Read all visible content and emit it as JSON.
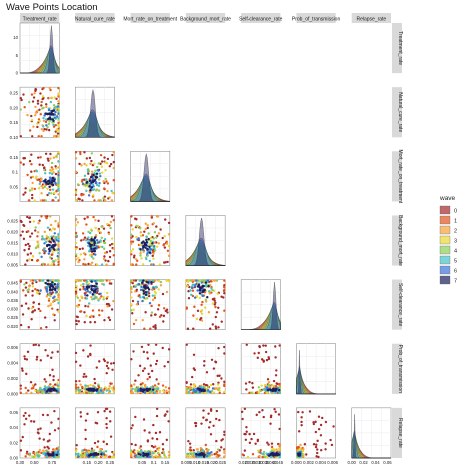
{
  "title": "Wave Points Location",
  "chart_data": {
    "type": "scatter",
    "description_kind": "pairs-plot",
    "variables": [
      {
        "name": "Treatment_rate",
        "range": [
          0.3,
          0.85
        ],
        "ticks": [
          "0.30",
          "0.50",
          "0.75"
        ],
        "tick_values": [
          0.3,
          0.5,
          0.75
        ]
      },
      {
        "name": "Natural_cure_rate",
        "range": [
          0.1,
          0.27
        ],
        "ticks": [
          "0.15",
          "0.20",
          "0.25"
        ],
        "tick_values": [
          0.15,
          0.2,
          0.25
        ]
      },
      {
        "name": "Mort_rate_on_treatment",
        "range": [
          0.0,
          0.17
        ],
        "ticks": [
          "0.05",
          "0.1",
          "0.15"
        ],
        "tick_values": [
          0.05,
          0.1,
          0.15
        ]
      },
      {
        "name": "Background_mort_rate",
        "range": [
          0.0048,
          0.0275
        ],
        "ticks": [
          "0.005",
          "0.010",
          "0.015",
          "0.020",
          "0.025"
        ],
        "tick_values": [
          0.005,
          0.01,
          0.015,
          0.02,
          0.025
        ]
      },
      {
        "name": "Self-clearance_rate",
        "range": [
          0.018,
          0.047
        ],
        "ticks": [
          "0.020",
          "0.025",
          "0.030",
          "0.035",
          "0.040",
          "0.045"
        ],
        "tick_values": [
          0.02,
          0.025,
          0.03,
          0.035,
          0.04,
          0.045
        ]
      },
      {
        "name": "Prob_of_transmission",
        "range": [
          0.0,
          0.0065
        ],
        "ticks": [
          "0.000",
          "0.002",
          "0.004",
          "0.006"
        ],
        "tick_values": [
          0.0,
          0.002,
          0.004,
          0.006
        ]
      },
      {
        "name": "Relapse_rate",
        "range": [
          0.0,
          0.066
        ],
        "ticks": [
          "0.00",
          "0.02",
          "0.04",
          "0.06"
        ],
        "tick_values": [
          0.0,
          0.02,
          0.04,
          0.06
        ]
      }
    ],
    "y_axis_ticks": {
      "0": {
        "labels": [
          "0",
          "5",
          "10"
        ],
        "values": [
          0,
          5,
          10
        ],
        "range": [
          0,
          14
        ]
      },
      "1": {
        "labels": [
          "0.10",
          "0.15",
          "0.20",
          "0.25"
        ],
        "values": [
          0.1,
          0.15,
          0.2,
          0.25
        ]
      },
      "2": {
        "labels": [
          "0.05",
          "0.1",
          "0.15"
        ],
        "values": [
          0.05,
          0.1,
          0.15
        ]
      },
      "3": {
        "labels": [
          "0.005",
          "0.010",
          "0.015",
          "0.020",
          "0.025"
        ],
        "values": [
          0.005,
          0.01,
          0.015,
          0.02,
          0.025
        ]
      },
      "4": {
        "labels": [
          "0.020",
          "0.025",
          "0.030",
          "0.035",
          "0.040",
          "0.045"
        ],
        "values": [
          0.02,
          0.025,
          0.03,
          0.035,
          0.04,
          0.045
        ]
      },
      "5": {
        "labels": [
          "0.000",
          "0.002",
          "0.004",
          "0.006"
        ],
        "values": [
          0.0,
          0.002,
          0.004,
          0.006
        ]
      },
      "6": {
        "labels": [
          "0.00",
          "0.02",
          "0.04",
          "0.06"
        ],
        "values": [
          0.0,
          0.02,
          0.04,
          0.06
        ]
      }
    },
    "legend": {
      "title": "wave",
      "placement": "right",
      "levels": [
        "0",
        "1",
        "2",
        "3",
        "4",
        "5",
        "6",
        "7"
      ],
      "colors": [
        "#a52a2a",
        "#e2541c",
        "#f7a23c",
        "#e8d934",
        "#8cd05a",
        "#46c2c8",
        "#3a75d9",
        "#1e1e5c"
      ]
    },
    "density_peak_wave": "7",
    "grid": true,
    "panel_background": "#ffffff",
    "grid_color": "#ebebeb",
    "strip_background": "#d9d9d9"
  }
}
